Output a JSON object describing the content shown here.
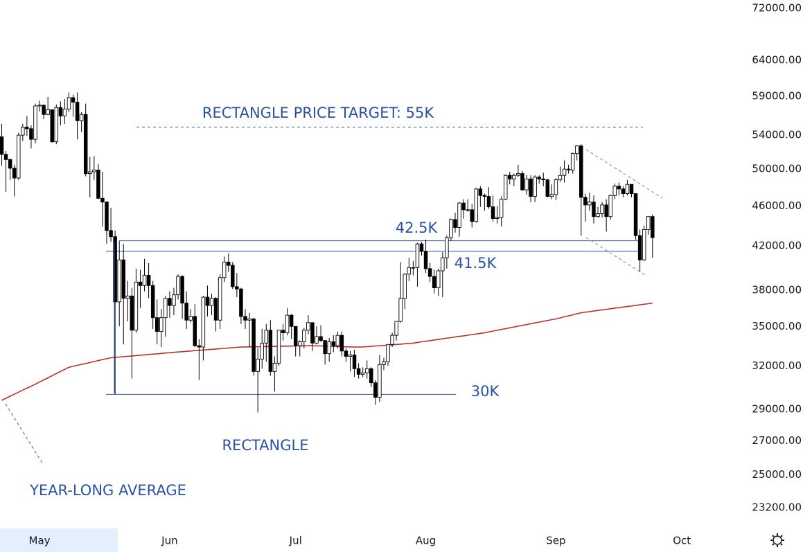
{
  "chart_data": {
    "type": "candlestick",
    "log_scale": true,
    "ylim": [
      22240,
      73370
    ],
    "yticks": [
      {
        "value": 72000,
        "label": "72000.00"
      },
      {
        "value": 64000,
        "label": "64000.00"
      },
      {
        "value": 59000,
        "label": "59000.00"
      },
      {
        "value": 54000,
        "label": "54000.00"
      },
      {
        "value": 50000,
        "label": "50000.00"
      },
      {
        "value": 46000,
        "label": "46000.00"
      },
      {
        "value": 42000,
        "label": "42000.00"
      },
      {
        "value": 38000,
        "label": "38000.00"
      },
      {
        "value": 35000,
        "label": "35000.00"
      },
      {
        "value": 32000,
        "label": "32000.00"
      },
      {
        "value": 29000,
        "label": "29000.00"
      },
      {
        "value": 27000,
        "label": "27000.00"
      },
      {
        "value": 25000,
        "label": "25000.00"
      },
      {
        "value": 23200,
        "label": "23200.00"
      }
    ],
    "categories": [
      null,
      null,
      null,
      null,
      null,
      null,
      null,
      null,
      null,
      "May",
      null,
      null,
      null,
      null,
      null,
      null,
      null,
      null,
      null,
      null,
      null,
      null,
      null,
      null,
      null,
      null,
      null,
      null,
      null,
      null,
      null,
      null,
      null,
      null,
      null,
      null,
      null,
      null,
      null,
      null,
      "Jun",
      null,
      null,
      null,
      null,
      null,
      null,
      null,
      null,
      null,
      null,
      null,
      null,
      null,
      null,
      null,
      null,
      null,
      null,
      null,
      null,
      null,
      null,
      null,
      null,
      null,
      null,
      null,
      null,
      null,
      "Jul",
      null,
      null,
      null,
      null,
      null,
      null,
      null,
      null,
      null,
      null,
      null,
      null,
      null,
      null,
      null,
      null,
      null,
      null,
      null,
      null,
      null,
      null,
      null,
      null,
      null,
      null,
      null,
      null,
      null,
      null,
      "Aug",
      null,
      null,
      null,
      null,
      null,
      null,
      null,
      null,
      null,
      null,
      null,
      null,
      null,
      null,
      null,
      null,
      null,
      null,
      null,
      null,
      null,
      null,
      null,
      null,
      null,
      null,
      null,
      null,
      null,
      null,
      "Sep",
      null,
      null,
      null,
      null,
      null,
      null,
      null,
      null,
      null,
      null,
      null,
      null,
      null,
      null,
      null,
      null,
      null,
      null,
      null,
      null,
      null,
      null,
      null,
      null,
      null,
      null,
      null,
      null,
      null,
      "Oct"
    ],
    "up_color": "#ffffff",
    "down_color": "#000000",
    "open": [
      53800,
      51700,
      51100,
      50100,
      49000,
      54000,
      55000,
      54800,
      53500,
      57700,
      57800,
      56600,
      57200,
      53200,
      57500,
      56400,
      57300,
      58800,
      58200,
      55800,
      56600,
      49500,
      49700,
      49900,
      46800,
      46400,
      43500,
      42900,
      37000,
      40700,
      37300,
      37500,
      34700,
      38700,
      38400,
      39300,
      38400,
      35700,
      34600,
      35700,
      37300,
      36700,
      37600,
      39200,
      36900,
      35500,
      35800,
      33500,
      33400,
      37400,
      36700,
      37300,
      35500,
      39100,
      40500,
      40200,
      38300,
      38100,
      35800,
      35500,
      35600,
      31600,
      32500,
      33700,
      34700,
      31600,
      32200,
      34700,
      34500,
      35900,
      35000,
      33500,
      33800,
      34700,
      35300,
      33700,
      34200,
      33900,
      32900,
      33800,
      33500,
      34300,
      33100,
      32700,
      32800,
      31800,
      31400,
      31500,
      31800,
      30800,
      29800,
      32100,
      32300,
      33600,
      34300,
      35400,
      37300,
      39400,
      40000,
      40000,
      42200,
      41500,
      39900,
      39200,
      38200,
      39700,
      40900,
      42800,
      44600,
      43800,
      46300,
      45600,
      45600,
      44400,
      47800,
      47100,
      47000,
      45900,
      44700,
      44800,
      46700,
      49300,
      48900,
      49300,
      49500,
      47700,
      48900,
      47000,
      49100,
      48900,
      48800,
      47000,
      47200,
      48800,
      49300,
      50000,
      49900,
      51800,
      52700,
      46900,
      46100,
      46400,
      44900,
      45200,
      46100,
      44900,
      47100,
      48100,
      47800,
      47300,
      48300,
      47300,
      43000,
      40700,
      43600,
      44900,
      null,
      null,
      null,
      null,
      null,
      null,
      null
    ],
    "high": [
      55400,
      52100,
      51200,
      50500,
      54300,
      55400,
      56400,
      55200,
      58000,
      58400,
      57900,
      58900,
      57200,
      57900,
      58300,
      58600,
      59500,
      59200,
      59500,
      56900,
      58000,
      51400,
      51500,
      50600,
      49700,
      46500,
      45800,
      43500,
      42500,
      42200,
      38800,
      38200,
      39900,
      39800,
      40800,
      40400,
      38800,
      37200,
      36400,
      37500,
      37900,
      38200,
      39400,
      39300,
      37900,
      36400,
      36800,
      34000,
      37500,
      38400,
      37700,
      37400,
      39400,
      41000,
      41300,
      40500,
      39500,
      38200,
      36400,
      36100,
      35700,
      33300,
      34800,
      35200,
      35500,
      32700,
      34700,
      35200,
      36500,
      36000,
      35000,
      33900,
      34900,
      35900,
      35300,
      35000,
      35100,
      33900,
      34100,
      34300,
      34600,
      34600,
      33300,
      33100,
      33200,
      32200,
      31900,
      32400,
      31900,
      31000,
      32800,
      32600,
      33600,
      34500,
      35400,
      40500,
      39500,
      40900,
      40600,
      42300,
      42400,
      42600,
      40400,
      39800,
      39900,
      41400,
      43000,
      44700,
      45300,
      46400,
      46700,
      46700,
      46200,
      47900,
      48100,
      47300,
      48000,
      47100,
      46000,
      47000,
      49400,
      49700,
      49500,
      50500,
      49800,
      49300,
      49300,
      49300,
      49300,
      49600,
      48900,
      48300,
      49000,
      50300,
      51000,
      50500,
      51900,
      52800,
      52900,
      47300,
      47400,
      47100,
      45900,
      46400,
      46700,
      47200,
      48400,
      48500,
      48100,
      48800,
      48300,
      47300,
      43600,
      44000,
      44900,
      45100,
      null,
      null,
      null,
      null,
      null,
      null,
      null
    ],
    "low": [
      50400,
      47500,
      48800,
      47000,
      48800,
      53300,
      53900,
      52400,
      53000,
      57000,
      56000,
      56500,
      53100,
      52900,
      55200,
      55400,
      56900,
      56300,
      53500,
      54400,
      49200,
      46900,
      48800,
      46700,
      43900,
      42200,
      42400,
      30000,
      35000,
      33600,
      35400,
      31100,
      34500,
      36500,
      37900,
      37300,
      34800,
      33600,
      33400,
      34200,
      35700,
      35900,
      37200,
      35600,
      34800,
      35300,
      33400,
      31000,
      32400,
      35800,
      35900,
      34600,
      34800,
      38700,
      39600,
      38100,
      37400,
      35200,
      34800,
      33400,
      31300,
      28800,
      31800,
      32300,
      31300,
      30200,
      32000,
      33900,
      34300,
      34000,
      32700,
      32700,
      33300,
      34400,
      33100,
      33600,
      33800,
      32100,
      32300,
      33000,
      33300,
      32700,
      32300,
      31600,
      31200,
      31100,
      31200,
      31100,
      30500,
      29300,
      29500,
      31700,
      32000,
      33400,
      33900,
      35300,
      36400,
      38800,
      39300,
      38300,
      41100,
      39500,
      38700,
      37700,
      37500,
      37400,
      39900,
      42500,
      43300,
      42900,
      44700,
      45400,
      43800,
      44300,
      45900,
      45500,
      45700,
      44400,
      44200,
      43900,
      46600,
      48300,
      48100,
      49100,
      47600,
      47200,
      46400,
      46400,
      48400,
      48100,
      46900,
      46700,
      46600,
      48600,
      48500,
      49500,
      49500,
      51000,
      43000,
      44400,
      45500,
      44200,
      44800,
      44800,
      43400,
      44600,
      46700,
      47100,
      46900,
      47100,
      46900,
      42600,
      39600,
      40600,
      43100,
      40900,
      null,
      null,
      null,
      null,
      null,
      null,
      null
    ],
    "close": [
      51700,
      51100,
      50100,
      49000,
      54000,
      55000,
      54800,
      53500,
      57700,
      57800,
      56600,
      57200,
      53200,
      57500,
      56400,
      57300,
      58800,
      58200,
      55800,
      56600,
      49500,
      49700,
      49900,
      46800,
      46400,
      43500,
      42900,
      37000,
      40700,
      37300,
      37500,
      34700,
      38700,
      38400,
      39300,
      38400,
      35700,
      34600,
      35700,
      37300,
      36700,
      37600,
      39200,
      36900,
      35500,
      35800,
      33500,
      33400,
      37400,
      36700,
      37300,
      35500,
      39100,
      40500,
      40200,
      38300,
      38100,
      35800,
      35500,
      35600,
      31600,
      32500,
      33700,
      34700,
      31600,
      32200,
      34700,
      34500,
      35900,
      35000,
      33500,
      33800,
      34700,
      35300,
      33700,
      34200,
      33900,
      32900,
      33800,
      33500,
      34300,
      33100,
      32700,
      32800,
      31800,
      31400,
      31500,
      31800,
      30800,
      29800,
      32100,
      32300,
      33600,
      34300,
      35400,
      37300,
      39400,
      40000,
      40000,
      42200,
      41500,
      39900,
      39200,
      38200,
      39700,
      40900,
      42800,
      44600,
      43800,
      46300,
      45600,
      45600,
      44400,
      47800,
      47100,
      47000,
      45900,
      44700,
      44800,
      46700,
      49300,
      48900,
      49300,
      49500,
      47700,
      48900,
      47000,
      49100,
      48900,
      48800,
      47000,
      47200,
      48800,
      49300,
      50000,
      49900,
      51800,
      52700,
      46900,
      46100,
      46400,
      44900,
      45200,
      46100,
      44900,
      47100,
      48100,
      47800,
      47300,
      48300,
      47300,
      43000,
      40700,
      43600,
      44900,
      42800,
      null,
      null,
      null,
      null,
      null,
      null,
      null
    ],
    "moving_average": {
      "name": "YEAR-LONG AVERAGE",
      "color": "#b8322c",
      "values": [
        29600,
        29740,
        29880,
        30010,
        30150,
        30290,
        30430,
        30560,
        30700,
        30850,
        31000,
        31150,
        31300,
        31450,
        31600,
        31750,
        31900,
        31970,
        32040,
        32110,
        32180,
        32250,
        32320,
        32390,
        32460,
        32530,
        32600,
        32630,
        32650,
        32680,
        32710,
        32730,
        32760,
        32790,
        32810,
        32840,
        32870,
        32890,
        32920,
        32950,
        32970,
        33000,
        33030,
        33050,
        33080,
        33100,
        33130,
        33150,
        33180,
        33200,
        33230,
        33250,
        33280,
        33300,
        33330,
        33350,
        33380,
        33400,
        33410,
        33410,
        33420,
        33420,
        33430,
        33440,
        33440,
        33450,
        33460,
        33460,
        33470,
        33470,
        33480,
        33490,
        33490,
        33500,
        33500,
        33490,
        33480,
        33470,
        33460,
        33450,
        33440,
        33430,
        33420,
        33410,
        33400,
        33400,
        33410,
        33430,
        33450,
        33480,
        33500,
        33520,
        33550,
        33570,
        33600,
        33620,
        33650,
        33670,
        33700,
        33750,
        33800,
        33840,
        33890,
        33940,
        33980,
        34030,
        34080,
        34120,
        34170,
        34220,
        34260,
        34310,
        34360,
        34400,
        34450,
        34500,
        34560,
        34630,
        34690,
        34760,
        34820,
        34890,
        34950,
        35020,
        35080,
        35150,
        35210,
        35280,
        35340,
        35410,
        35470,
        35540,
        35600,
        35680,
        35770,
        35850,
        35930,
        36020,
        36100,
        36150,
        36190,
        36240,
        36290,
        36340,
        36380,
        36430,
        36480,
        36520,
        36570,
        36620,
        36660,
        36710,
        36760,
        36800,
        36850,
        36900,
        null,
        null,
        null,
        null,
        null,
        null,
        null
      ]
    },
    "levels": [
      {
        "label": "RECTANGLE PRICE TARGET: 55K",
        "value": 55000,
        "color": "#2a52a0",
        "dashed": true
      },
      {
        "label": "42.5K",
        "value": 42500,
        "color": "#2a52a0",
        "dashed": false
      },
      {
        "label": "41.5K",
        "value": 41500,
        "color": "#2a52a0",
        "dashed": false
      },
      {
        "label": "30K",
        "value": 30000,
        "color": "#2a52a0",
        "dashed": false
      }
    ],
    "pattern_label": "RECTANGLE"
  }
}
